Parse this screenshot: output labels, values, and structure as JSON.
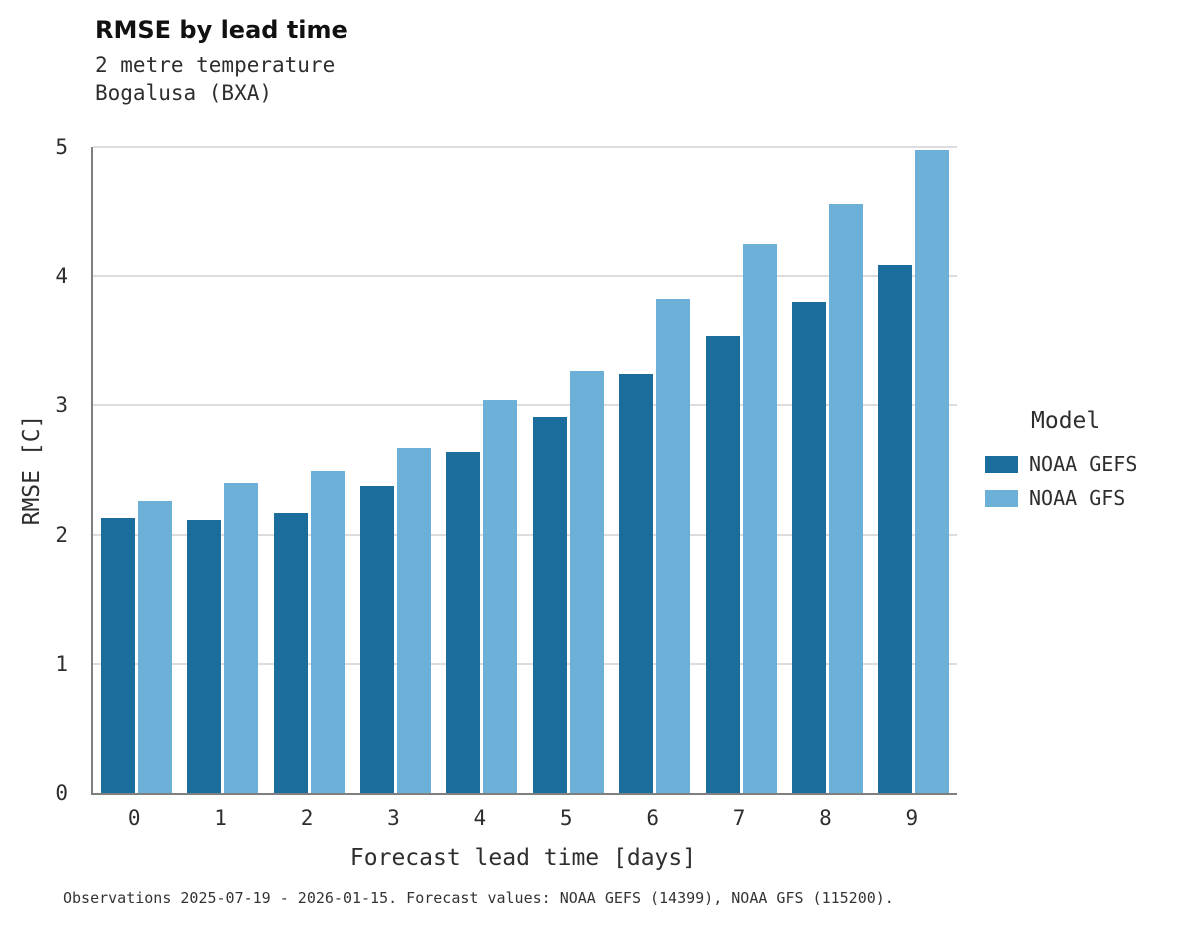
{
  "title": "RMSE by lead time",
  "subtitle_line1": "2 metre temperature",
  "subtitle_line2": "Bogalusa (BXA)",
  "caption": "Observations 2025-07-19 - 2026-01-15. Forecast values: NOAA GEFS (14399), NOAA GFS (115200).",
  "legend": {
    "title": "Model",
    "entries": [
      {
        "label": "NOAA GEFS",
        "color": "#1b6d9b"
      },
      {
        "label": "NOAA GFS",
        "color": "#6cb0d8"
      }
    ]
  },
  "colors": {
    "noaa_gefs": "#1b6d9b",
    "noaa_gfs": "#6cb0d8",
    "gridline": "#dcdcdc",
    "axis": "#7f7f7f"
  },
  "chart_data": {
    "type": "bar",
    "title": "RMSE by lead time",
    "subtitle": "2 metre temperature, Bogalusa (BXA)",
    "xlabel": "Forecast lead time [days]",
    "ylabel": "RMSE [C]",
    "categories": [
      "0",
      "1",
      "2",
      "3",
      "4",
      "5",
      "6",
      "7",
      "8",
      "9"
    ],
    "series": [
      {
        "name": "NOAA GEFS",
        "color": "#1b6d9b",
        "values": [
          2.13,
          2.11,
          2.17,
          2.38,
          2.64,
          2.91,
          3.24,
          3.54,
          3.8,
          4.09
        ]
      },
      {
        "name": "NOAA GFS",
        "color": "#6cb0d8",
        "values": [
          2.26,
          2.4,
          2.49,
          2.67,
          3.04,
          3.27,
          3.82,
          4.25,
          4.56,
          4.98
        ]
      }
    ],
    "ylim": [
      0,
      5
    ],
    "yticks": [
      0,
      1,
      2,
      3,
      4,
      5
    ],
    "grid": true,
    "legend_position": "right"
  }
}
